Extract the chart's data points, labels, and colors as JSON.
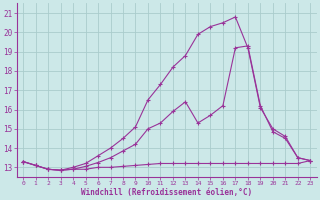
{
  "xlabel": "Windchill (Refroidissement éolien,°C)",
  "background_color": "#cce8e8",
  "grid_color": "#aacccc",
  "line_color": "#993399",
  "xlim": [
    -0.5,
    23.5
  ],
  "ylim": [
    12.5,
    21.5
  ],
  "yticks": [
    13,
    14,
    15,
    16,
    17,
    18,
    19,
    20,
    21
  ],
  "xticks": [
    0,
    1,
    2,
    3,
    4,
    5,
    6,
    7,
    8,
    9,
    10,
    11,
    12,
    13,
    14,
    15,
    16,
    17,
    18,
    19,
    20,
    21,
    22,
    23
  ],
  "series": [
    {
      "x": [
        0,
        1,
        2,
        3,
        4,
        5,
        6,
        7,
        8,
        9,
        10,
        11,
        12,
        13,
        14,
        15,
        16,
        17,
        18,
        19,
        20,
        21,
        22,
        23
      ],
      "y": [
        13.3,
        13.1,
        12.9,
        12.85,
        12.9,
        12.9,
        13.0,
        13.0,
        13.05,
        13.1,
        13.15,
        13.2,
        13.2,
        13.2,
        13.2,
        13.2,
        13.2,
        13.2,
        13.2,
        13.2,
        13.2,
        13.2,
        13.2,
        13.35
      ]
    },
    {
      "x": [
        0,
        1,
        2,
        3,
        4,
        5,
        6,
        7,
        8,
        9,
        10,
        11,
        12,
        13,
        14,
        15,
        16,
        17,
        18,
        19,
        20,
        21,
        22,
        23
      ],
      "y": [
        13.3,
        13.1,
        12.9,
        12.85,
        12.9,
        13.05,
        13.25,
        13.5,
        13.85,
        14.2,
        15.0,
        15.3,
        15.9,
        16.4,
        15.3,
        15.7,
        16.2,
        19.2,
        19.3,
        16.2,
        14.85,
        14.5,
        13.5,
        13.35
      ]
    },
    {
      "x": [
        0,
        1,
        2,
        3,
        4,
        5,
        6,
        7,
        8,
        9,
        10,
        11,
        12,
        13,
        14,
        15,
        16,
        17,
        18,
        19,
        20,
        21,
        22,
        23
      ],
      "y": [
        13.3,
        13.1,
        12.9,
        12.85,
        13.0,
        13.2,
        13.6,
        14.0,
        14.5,
        15.1,
        16.5,
        17.3,
        18.2,
        18.8,
        19.9,
        20.3,
        20.5,
        20.8,
        19.2,
        16.1,
        15.0,
        14.6,
        13.5,
        13.35
      ]
    }
  ]
}
